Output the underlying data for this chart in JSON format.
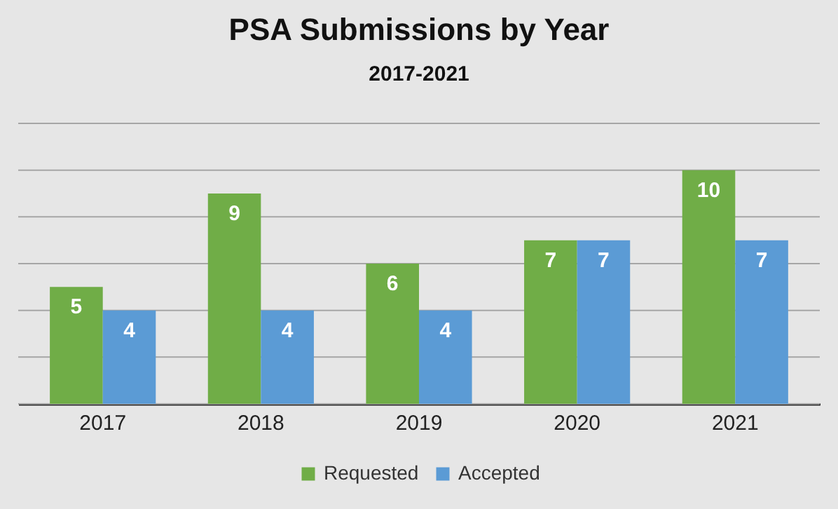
{
  "chart_data": {
    "type": "bar",
    "title": "PSA Submissions by Year",
    "subtitle": "2017-2021",
    "categories": [
      "2017",
      "2018",
      "2019",
      "2020",
      "2021"
    ],
    "series": [
      {
        "name": "Requested",
        "color": "#70ad47",
        "values": [
          5,
          9,
          6,
          7,
          10
        ]
      },
      {
        "name": "Accepted",
        "color": "#5b9bd5",
        "values": [
          4,
          4,
          4,
          7,
          7
        ]
      }
    ],
    "ylim": [
      0,
      12
    ],
    "yticks": [
      0,
      2,
      4,
      6,
      8,
      10,
      12
    ],
    "grid": "y",
    "tick_labels": "x",
    "data_labels": true,
    "legend": "bottom"
  }
}
